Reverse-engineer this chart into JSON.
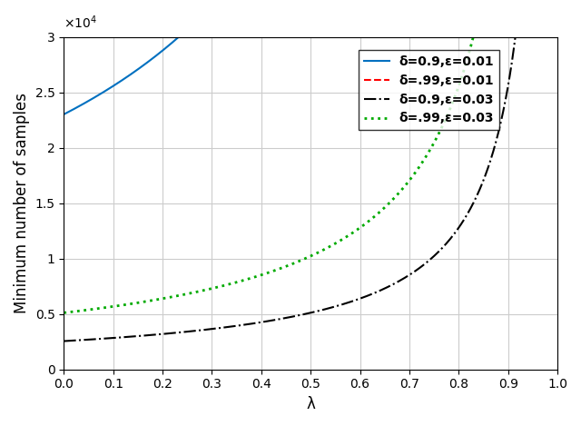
{
  "title": "",
  "xlabel": "λ",
  "ylabel": "Minimum number of samples",
  "xlim": [
    0,
    1
  ],
  "ylim": [
    0,
    30000
  ],
  "yticks": [
    0,
    5000,
    10000,
    15000,
    20000,
    25000,
    30000
  ],
  "xticks": [
    0,
    0.1,
    0.2,
    0.3,
    0.4,
    0.5,
    0.6,
    0.7,
    0.8,
    0.9,
    1.0
  ],
  "lines": [
    {
      "delta": 0.9,
      "epsilon": 0.01,
      "color": "#0070C0",
      "linestyle": "solid",
      "linewidth": 1.5,
      "label": "δ=0.9,ε=0.01"
    },
    {
      "delta": 0.99,
      "epsilon": 0.01,
      "color": "#FF0000",
      "linestyle": "dashed",
      "linewidth": 1.5,
      "label": "δ=.99,ε=0.01"
    },
    {
      "delta": 0.9,
      "epsilon": 0.03,
      "color": "#000000",
      "linestyle": "dashdot",
      "linewidth": 1.5,
      "label": "δ=0.9,ε=0.03"
    },
    {
      "delta": 0.99,
      "epsilon": 0.03,
      "color": "#00AA00",
      "linestyle": "dotted",
      "linewidth": 2.0,
      "label": "δ=.99,ε=0.03"
    }
  ],
  "grid_color": "#CCCCCC",
  "background_color": "#FFFFFF",
  "legend_fontsize": 10,
  "axis_label_fontsize": 12
}
